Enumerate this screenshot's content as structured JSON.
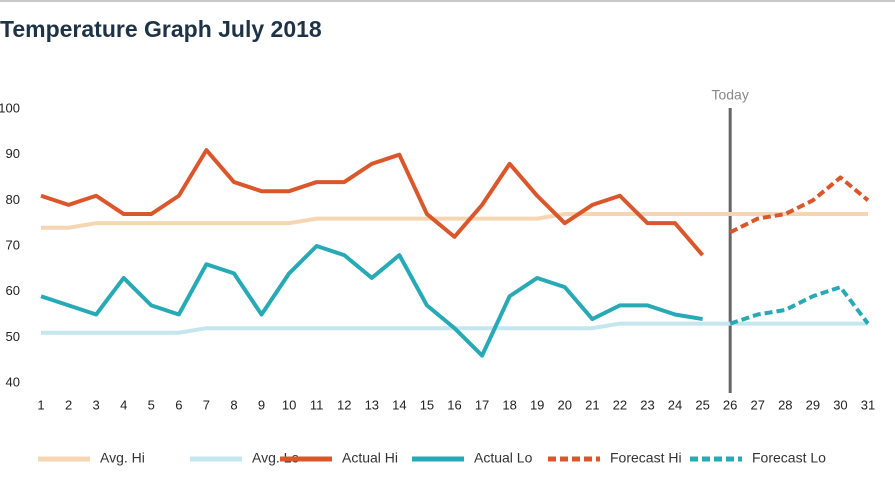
{
  "chart_data": {
    "type": "line",
    "title": "Temperature Graph July 2018",
    "x": [
      1,
      2,
      3,
      4,
      5,
      6,
      7,
      8,
      9,
      10,
      11,
      12,
      13,
      14,
      15,
      16,
      17,
      18,
      19,
      20,
      21,
      22,
      23,
      24,
      25,
      26,
      27,
      28,
      29,
      30,
      31
    ],
    "xlim": [
      1,
      31
    ],
    "xticks": [
      1,
      2,
      3,
      4,
      5,
      6,
      7,
      8,
      9,
      10,
      11,
      12,
      13,
      14,
      15,
      16,
      17,
      18,
      19,
      20,
      21,
      22,
      23,
      24,
      25,
      26,
      27,
      28,
      29,
      30,
      31
    ],
    "ylim": [
      40,
      100
    ],
    "yticks": [
      40,
      50,
      60,
      70,
      80,
      90,
      100
    ],
    "grid": false,
    "legend": "bottom",
    "annotations": [
      {
        "text": "Today",
        "x": 26
      }
    ],
    "series": [
      {
        "name": "Avg. Hi",
        "color": "#f6d6b2",
        "line_style": "solid",
        "values": [
          74,
          74,
          75,
          75,
          75,
          75,
          75,
          75,
          75,
          75,
          76,
          76,
          76,
          76,
          76,
          76,
          76,
          76,
          76,
          77,
          77,
          77,
          77,
          77,
          77,
          77,
          77,
          77,
          77,
          77,
          77
        ]
      },
      {
        "name": "Avg. Lo",
        "color": "#c4e6ee",
        "line_style": "solid",
        "values": [
          51,
          51,
          51,
          51,
          51,
          51,
          52,
          52,
          52,
          52,
          52,
          52,
          52,
          52,
          52,
          52,
          52,
          52,
          52,
          52,
          52,
          53,
          53,
          53,
          53,
          53,
          53,
          53,
          53,
          53,
          53
        ]
      },
      {
        "name": "Actual Hi",
        "color": "#d9572b",
        "line_style": "solid",
        "values": [
          81,
          79,
          81,
          77,
          77,
          81,
          91,
          84,
          82,
          82,
          84,
          84,
          88,
          90,
          77,
          72,
          79,
          88,
          81,
          75,
          79,
          81,
          75,
          75,
          68,
          null,
          null,
          null,
          null,
          null,
          null
        ]
      },
      {
        "name": "Actual Lo",
        "color": "#27a9b6",
        "line_style": "solid",
        "values": [
          59,
          57,
          55,
          63,
          57,
          55,
          66,
          64,
          55,
          64,
          70,
          68,
          63,
          68,
          57,
          52,
          46,
          59,
          63,
          61,
          54,
          57,
          57,
          55,
          54,
          null,
          null,
          null,
          null,
          null,
          null
        ]
      },
      {
        "name": "Forecast Hi",
        "color": "#d9572b",
        "line_style": "dashed",
        "values": [
          null,
          null,
          null,
          null,
          null,
          null,
          null,
          null,
          null,
          null,
          null,
          null,
          null,
          null,
          null,
          null,
          null,
          null,
          null,
          null,
          null,
          null,
          null,
          null,
          null,
          73,
          76,
          77,
          80,
          85,
          80
        ]
      },
      {
        "name": "Forecast Lo",
        "color": "#27a9b6",
        "line_style": "dashed",
        "values": [
          null,
          null,
          null,
          null,
          null,
          null,
          null,
          null,
          null,
          null,
          null,
          null,
          null,
          null,
          null,
          null,
          null,
          null,
          null,
          null,
          null,
          null,
          null,
          null,
          null,
          53,
          55,
          56,
          59,
          61,
          53
        ]
      }
    ]
  }
}
